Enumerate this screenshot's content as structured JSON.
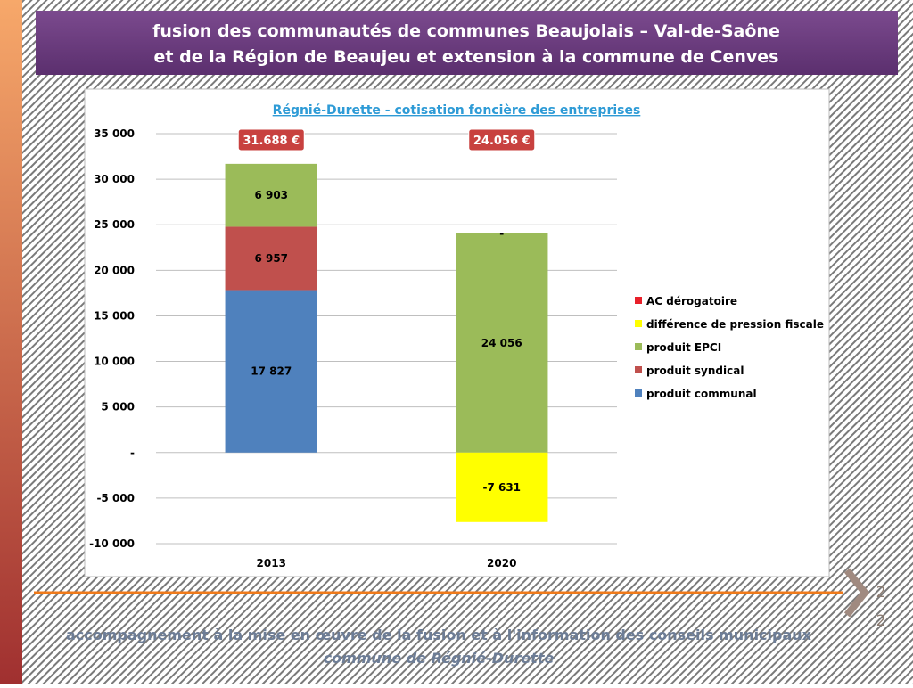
{
  "header": {
    "title_lines": [
      "fusion des communautés de communes Beaujolais – Val-de-Saône",
      "et de la Région de Beaujeu et extension à la commune de Cenves"
    ]
  },
  "chart_data": {
    "type": "stacked_bar",
    "title": "Régnié-Durette - cotisation foncière des entreprises",
    "categories": [
      "2013",
      "2020"
    ],
    "series": [
      {
        "name": "AC dérogatoire",
        "color": "#e8202a",
        "values": [
          null,
          0
        ],
        "value_labels": [
          null,
          "-"
        ]
      },
      {
        "name": "différence de pression fiscale",
        "color": "#ffff00",
        "values": [
          null,
          -7631
        ],
        "value_labels": [
          null,
          "-7 631"
        ]
      },
      {
        "name": "produit EPCI",
        "color": "#9bbb59",
        "values": [
          6903,
          24056
        ],
        "value_labels": [
          "6 903",
          "24 056"
        ]
      },
      {
        "name": "produit syndical",
        "color": "#c0504d",
        "values": [
          6957,
          null
        ],
        "value_labels": [
          "6 957",
          null
        ]
      },
      {
        "name": "produit communal",
        "color": "#4f81bd",
        "values": [
          17827,
          null
        ],
        "value_labels": [
          "17 827",
          null
        ]
      }
    ],
    "ylim": [
      -10000,
      35000
    ],
    "yticks": [
      {
        "value": -10000,
        "label": "-10 000"
      },
      {
        "value": -5000,
        "label": "-5 000"
      },
      {
        "value": 0,
        "label": "-"
      },
      {
        "value": 5000,
        "label": "5 000"
      },
      {
        "value": 10000,
        "label": "10 000"
      },
      {
        "value": 15000,
        "label": "15 000"
      },
      {
        "value": 20000,
        "label": "20 000"
      },
      {
        "value": 25000,
        "label": "25 000"
      },
      {
        "value": 30000,
        "label": "30 000"
      },
      {
        "value": 35000,
        "label": "35 000"
      }
    ],
    "grid": true,
    "legend": "right",
    "annotations": [
      "31.688 €",
      "24.056 €"
    ]
  },
  "footer": {
    "lines": [
      "accompagnement à la mise en œuvre de la fusion et à l'information des conseils municipaux",
      "commune de Régnié-Durette"
    ],
    "page_number": [
      "2",
      "2"
    ]
  }
}
